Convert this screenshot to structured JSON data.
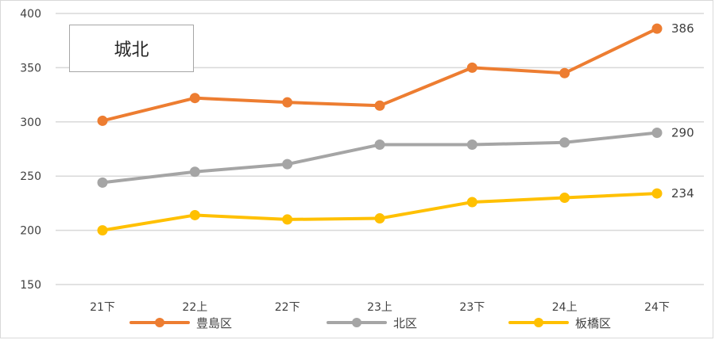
{
  "chart_data": {
    "type": "line",
    "title": "城北",
    "categories": [
      "21下",
      "22上",
      "22下",
      "23上",
      "23下",
      "24上",
      "24下"
    ],
    "ylim": [
      150,
      400
    ],
    "yticks": [
      150,
      200,
      250,
      300,
      350,
      400
    ],
    "grid": true,
    "legend_position": "bottom",
    "series": [
      {
        "name": "豊島区",
        "color": "#ED7D31",
        "values": [
          301,
          322,
          318,
          315,
          350,
          345,
          386
        ],
        "end_label": "386"
      },
      {
        "name": "北区",
        "color": "#A5A5A5",
        "values": [
          244,
          254,
          261,
          279,
          279,
          281,
          290
        ],
        "end_label": "290"
      },
      {
        "name": "板橋区",
        "color": "#FFC000",
        "values": [
          200,
          214,
          210,
          211,
          226,
          230,
          234
        ],
        "end_label": "234"
      }
    ]
  }
}
